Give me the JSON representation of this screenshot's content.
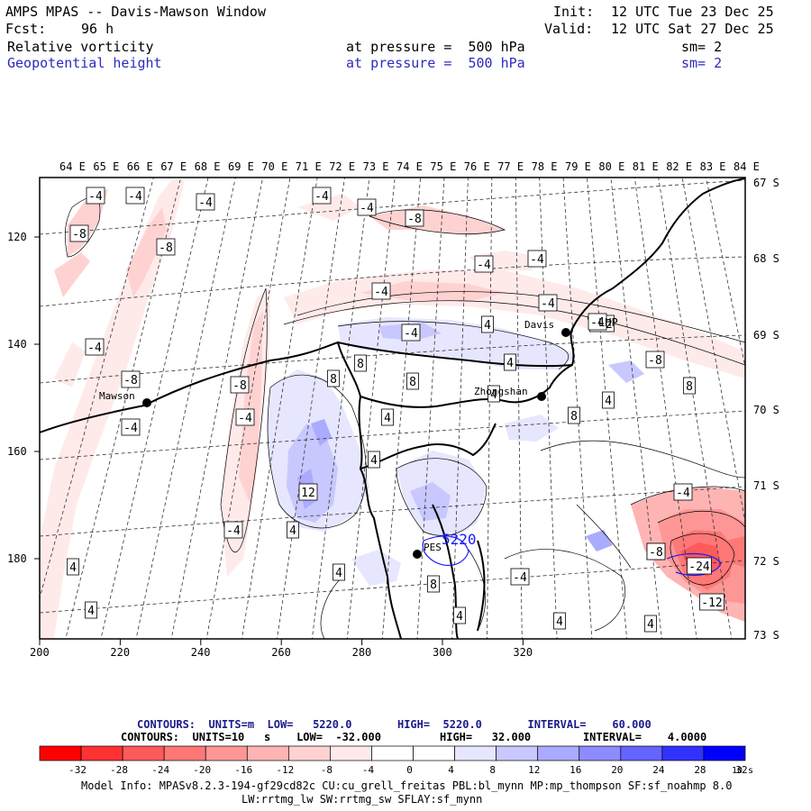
{
  "header": {
    "title": "AMPS MPAS -- Davis-Mawson Window",
    "fcst_label": "Fcst:",
    "fcst_value": "96 h",
    "init_label": "Init:",
    "init_value": "12 UTC Tue 23 Dec 25",
    "valid_label": "Valid:",
    "valid_value": "12 UTC Sat 27 Dec 25",
    "field1": {
      "name": "Relative vorticity",
      "level": "at pressure =  500 hPa",
      "sm": "sm= 2"
    },
    "field2": {
      "name": "Geopotential height",
      "level": "at pressure =  500 hPa",
      "sm": "sm= 2"
    }
  },
  "map": {
    "lon_labels": [
      "64 E",
      "65 E",
      "66 E",
      "67 E",
      "68 E",
      "69 E",
      "70 E",
      "71 E",
      "72 E",
      "73 E",
      "74 E",
      "75 E",
      "76 E",
      "77 E",
      "78 E",
      "79 E",
      "80 E",
      "81 E",
      "82 E",
      "83 E",
      "84 E"
    ],
    "lat_labels": [
      "67 S",
      "68 S",
      "69 S",
      "70 S",
      "71 S",
      "72 S",
      "73 S"
    ],
    "x_ticks": [
      "200",
      "220",
      "240",
      "260",
      "280",
      "300",
      "320"
    ],
    "y_ticks": [
      "120",
      "140",
      "160",
      "180"
    ],
    "stations": [
      {
        "name": "Mawson"
      },
      {
        "name": "Davis"
      },
      {
        "name": "Zhongshan"
      },
      {
        "name": "LHP"
      },
      {
        "name": "PES"
      }
    ],
    "height_label": "5220",
    "contour_labels": [
      "-4",
      "-4",
      "-4",
      "-4",
      "-4",
      "-8",
      "-8",
      "-8",
      "-4",
      "-4",
      "-4",
      "-4",
      "-4",
      "-8",
      "-8",
      "-4",
      "-4",
      "-8",
      "-4",
      "-12",
      "-4",
      "-8",
      "-4",
      "4",
      "8",
      "8",
      "4",
      "8",
      "4",
      "12",
      "4",
      "8",
      "4",
      "8",
      "4",
      "4",
      "8",
      "4",
      "4",
      "4",
      "4",
      "4",
      "4",
      "-4",
      "-4",
      "-8",
      "-24",
      "-12"
    ],
    "colors": {
      "neg_strong": "#ff0000",
      "pos_strong": "#0000ff"
    }
  },
  "legend": {
    "line1": "CONTOURS:  UNITS=m  LOW=   5220.0       HIGH=  5220.0       INTERVAL=    60.000",
    "line2": "CONTOURS:  UNITS=10   s    LOW=  -32.000         HIGH=   32.000        INTERVAL=    4.0000",
    "ticks": [
      "-32",
      "-28",
      "-24",
      "-20",
      "-16",
      "-12",
      "-8",
      "-4",
      "0",
      "4",
      "8",
      "12",
      "16",
      "20",
      "24",
      "28",
      "32"
    ],
    "units": "10   s",
    "colors": [
      "#ff0000",
      "#ff3232",
      "#ff5a5a",
      "#ff7878",
      "#ff9696",
      "#ffb4b4",
      "#ffd2d2",
      "#ffeaea",
      "#ffffff",
      "#ffffff",
      "#e6e6ff",
      "#c8c8ff",
      "#aaaaff",
      "#8c8cff",
      "#6464ff",
      "#3232ff",
      "#0000ff"
    ]
  },
  "footer": {
    "line1": "Model Info: MPASv8.2.3-194-gf29cd82c CU:cu_grell_freitas PBL:bl_mynn MP:mp_thompson SF:sf_noahmp 8.0",
    "line2": "LW:rrtmg_lw SW:rrtmg_sw SFLAY:sf_mynn"
  }
}
